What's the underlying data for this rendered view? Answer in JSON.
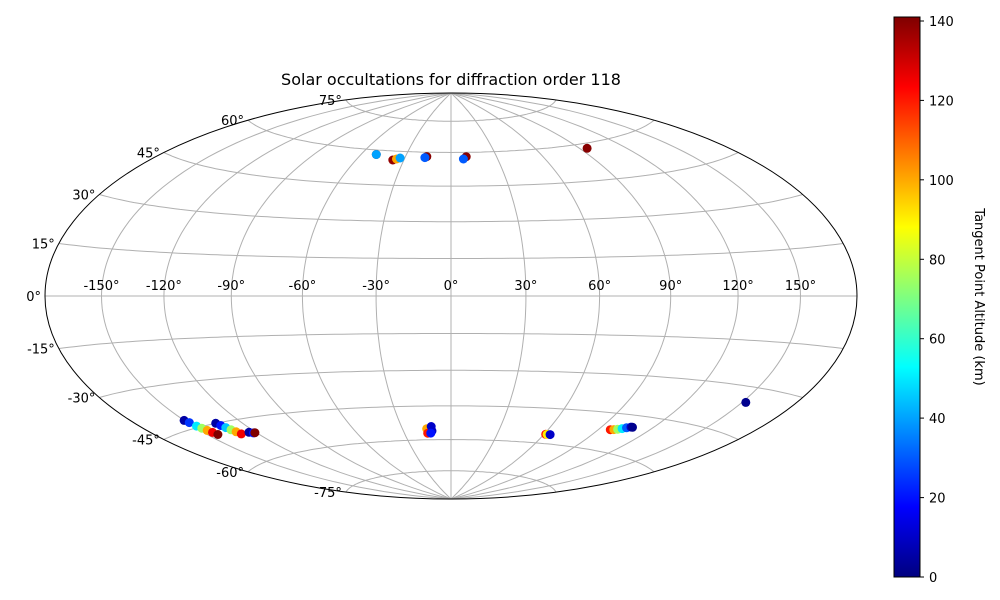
{
  "chart_data": {
    "type": "scatter",
    "projection": "aitoff/hammer (equal-area, elliptical)",
    "title": "Solar occultations for diffraction order 118",
    "lon_ticks": [
      "-150°",
      "-120°",
      "-90°",
      "-60°",
      "-30°",
      "0°",
      "30°",
      "60°",
      "90°",
      "120°",
      "150°"
    ],
    "lat_ticks": [
      "75°",
      "60°",
      "45°",
      "30°",
      "15°",
      "0°",
      "-15°",
      "-30°",
      "-45°",
      "-60°",
      "-75°"
    ],
    "grid": true,
    "colorbar": {
      "label": "Tangent Point Altitude (km)",
      "colormap": "jet",
      "range": [
        0,
        141
      ],
      "ticks": [
        "0",
        "20",
        "40",
        "60",
        "80",
        "100",
        "120",
        "140"
      ],
      "position": "right"
    },
    "points": [
      {
        "lon": -50,
        "lat": 58,
        "alt": 140
      },
      {
        "lon": -50,
        "lat": 58,
        "alt": 40
      },
      {
        "lon": -37,
        "lat": 56,
        "alt": 138
      },
      {
        "lon": -35,
        "lat": 56.5,
        "alt": 100
      },
      {
        "lon": -33,
        "lat": 57,
        "alt": 40
      },
      {
        "lon": -16,
        "lat": 58,
        "alt": 140
      },
      {
        "lon": -17,
        "lat": 57.5,
        "alt": 30
      },
      {
        "lon": 10,
        "lat": 58,
        "alt": 140
      },
      {
        "lon": 8,
        "lat": 57,
        "alt": 30
      },
      {
        "lon": 95,
        "lat": 58,
        "alt": 140
      },
      {
        "lon": -150,
        "lat": -42,
        "alt": 5
      },
      {
        "lon": -149,
        "lat": -43,
        "alt": 25
      },
      {
        "lon": -148,
        "lat": -44.5,
        "alt": 50
      },
      {
        "lon": -147,
        "lat": -45.5,
        "alt": 75
      },
      {
        "lon": -146,
        "lat": -46.5,
        "alt": 100
      },
      {
        "lon": -145,
        "lat": -47.5,
        "alt": 125
      },
      {
        "lon": -144,
        "lat": -48.5,
        "alt": 141
      },
      {
        "lon": -135,
        "lat": -45,
        "alt": 5
      },
      {
        "lon": -134,
        "lat": -46,
        "alt": 20
      },
      {
        "lon": -133,
        "lat": -47,
        "alt": 45
      },
      {
        "lon": -132,
        "lat": -48,
        "alt": 75
      },
      {
        "lon": -131,
        "lat": -49,
        "alt": 100
      },
      {
        "lon": -130,
        "lat": -50,
        "alt": 125
      },
      {
        "lon": -124,
        "lat": -50,
        "alt": 5
      },
      {
        "lon": -122,
        "lat": -50.5,
        "alt": 20
      },
      {
        "lon": -121,
        "lat": -50.5,
        "alt": 141
      },
      {
        "lon": -15,
        "lat": -55,
        "alt": 100
      },
      {
        "lon": -15,
        "lat": -57,
        "alt": 120
      },
      {
        "lon": -12,
        "lat": -54,
        "alt": 10
      },
      {
        "lon": -12,
        "lat": -56,
        "alt": 10
      },
      {
        "lon": -13,
        "lat": -57,
        "alt": 20
      },
      {
        "lon": 61,
        "lat": -56,
        "alt": 120
      },
      {
        "lon": 62,
        "lat": -56,
        "alt": 90
      },
      {
        "lon": 64,
        "lat": -56,
        "alt": 10
      },
      {
        "lon": 97,
        "lat": -51.5,
        "alt": 120
      },
      {
        "lon": 99,
        "lat": -51.3,
        "alt": 100
      },
      {
        "lon": 101,
        "lat": -51,
        "alt": 75
      },
      {
        "lon": 103,
        "lat": -50.5,
        "alt": 50
      },
      {
        "lon": 105,
        "lat": -50,
        "alt": 30
      },
      {
        "lon": 107,
        "lat": -49.5,
        "alt": 10
      },
      {
        "lon": 108,
        "lat": -49.5,
        "alt": 2
      },
      {
        "lon": 152,
        "lat": -35,
        "alt": 2
      }
    ]
  }
}
